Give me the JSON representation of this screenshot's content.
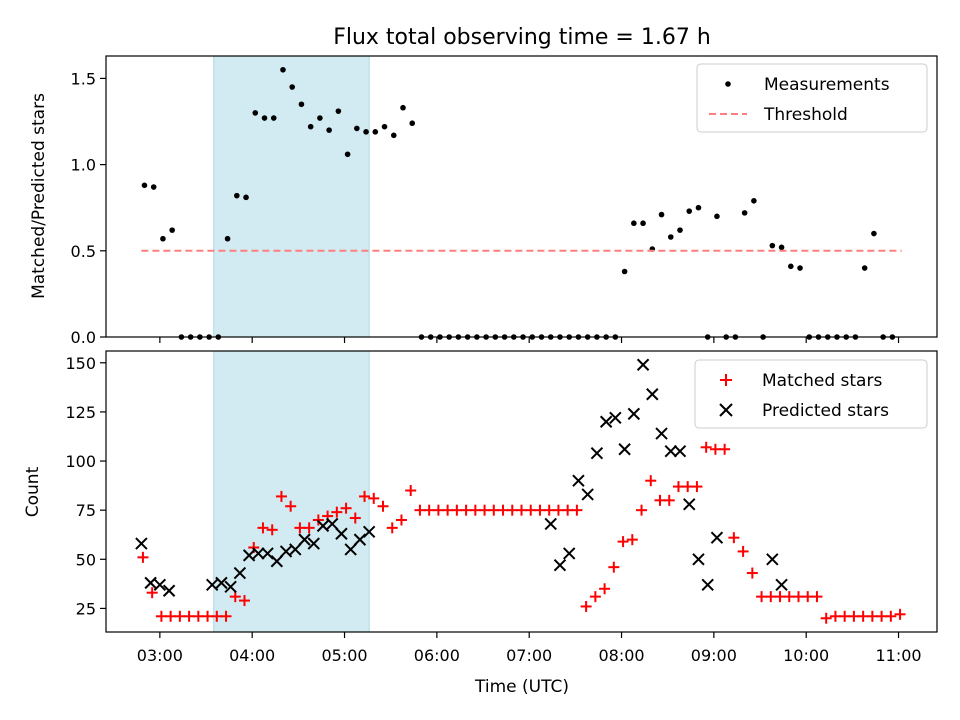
{
  "chart_data": [
    {
      "type": "scatter",
      "title": "Flux total observing time = 1.67 h",
      "xlabel": "",
      "ylabel": "Matched/Predicted stars",
      "xlim": [
        "02:25",
        "11:25"
      ],
      "ylim": [
        0,
        1.63
      ],
      "yticks": [
        0.0,
        0.5,
        1.0,
        1.5
      ],
      "ytick_labels": [
        "0.0",
        "0.5",
        "1.0",
        "1.5"
      ],
      "shaded_region": {
        "start": "03:35",
        "end": "05:16",
        "color": "#add8e6"
      },
      "legend_position": "upper right",
      "series": [
        {
          "name": "Measurements",
          "marker": "dot",
          "color": "#000000",
          "x": [
            "02:50",
            "02:56",
            "03:02",
            "03:08",
            "03:14",
            "03:20",
            "03:26",
            "03:32",
            "03:38",
            "03:44",
            "03:50",
            "03:56",
            "04:02",
            "04:08",
            "04:14",
            "04:20",
            "04:26",
            "04:32",
            "04:38",
            "04:44",
            "04:50",
            "04:56",
            "05:02",
            "05:08",
            "05:14",
            "05:20",
            "05:26",
            "05:32",
            "05:38",
            "05:44",
            "05:50",
            "05:56",
            "06:02",
            "06:08",
            "06:14",
            "06:20",
            "06:26",
            "06:32",
            "06:38",
            "06:44",
            "06:50",
            "06:56",
            "07:02",
            "07:08",
            "07:14",
            "07:20",
            "07:26",
            "07:32",
            "07:38",
            "07:44",
            "07:50",
            "07:56",
            "08:02",
            "08:08",
            "08:14",
            "08:20",
            "08:26",
            "08:32",
            "08:38",
            "08:44",
            "08:50",
            "08:56",
            "09:02",
            "09:08",
            "09:14",
            "09:20",
            "09:26",
            "09:32",
            "09:38",
            "09:44",
            "09:50",
            "09:56",
            "10:02",
            "10:08",
            "10:14",
            "10:20",
            "10:26",
            "10:32",
            "10:38",
            "10:44",
            "10:50",
            "10:56"
          ],
          "y": [
            0.88,
            0.87,
            0.57,
            0.62,
            0,
            0,
            0,
            0,
            0,
            0.57,
            0.82,
            0.81,
            1.3,
            1.27,
            1.27,
            1.55,
            1.45,
            1.35,
            1.22,
            1.27,
            1.2,
            1.31,
            1.06,
            1.21,
            1.19,
            1.19,
            1.22,
            1.17,
            1.33,
            1.24,
            0,
            0,
            0,
            0,
            0,
            0,
            0,
            0,
            0,
            0,
            0,
            0,
            0,
            0,
            0,
            0,
            0,
            0,
            0,
            0,
            0,
            0,
            0.38,
            0.66,
            0.66,
            0.51,
            0.71,
            0.58,
            0.62,
            0.73,
            0.75,
            0,
            0.7,
            0,
            0,
            0.72,
            0.79,
            0,
            0.53,
            0.52,
            0.41,
            0.4,
            0,
            0,
            0,
            0,
            0,
            0,
            0.4,
            0.6,
            0,
            0
          ]
        },
        {
          "name": "Threshold",
          "marker": "dashed-line",
          "color": "#ff7f7f",
          "x": [
            "02:48",
            "11:02"
          ],
          "y": [
            0.5,
            0.5
          ]
        }
      ]
    },
    {
      "type": "scatter",
      "title": "",
      "xlabel": "Time (UTC)",
      "ylabel": "Count",
      "xlim": [
        "02:25",
        "11:25"
      ],
      "ylim": [
        13,
        156
      ],
      "xticks": [
        "03:00",
        "04:00",
        "05:00",
        "06:00",
        "07:00",
        "08:00",
        "09:00",
        "10:00",
        "11:00"
      ],
      "yticks": [
        25,
        50,
        75,
        100,
        125,
        150
      ],
      "ytick_labels": [
        "25",
        "50",
        "75",
        "100",
        "125",
        "150"
      ],
      "shaded_region": {
        "start": "03:35",
        "end": "05:16",
        "color": "#add8e6"
      },
      "legend_position": "upper right",
      "series": [
        {
          "name": "Matched stars",
          "marker": "plus",
          "color": "#ff0000",
          "x": [
            "02:49",
            "02:55",
            "03:01",
            "03:07",
            "03:13",
            "03:19",
            "03:25",
            "03:31",
            "03:37",
            "03:43",
            "03:49",
            "03:55",
            "04:01",
            "04:07",
            "04:13",
            "04:19",
            "04:25",
            "04:31",
            "04:37",
            "04:43",
            "04:49",
            "04:55",
            "05:01",
            "05:07",
            "05:13",
            "05:19",
            "05:25",
            "05:31",
            "05:37",
            "05:43",
            "05:49",
            "05:55",
            "06:01",
            "06:07",
            "06:13",
            "06:19",
            "06:25",
            "06:31",
            "06:37",
            "06:43",
            "06:49",
            "06:55",
            "07:01",
            "07:07",
            "07:13",
            "07:19",
            "07:25",
            "07:31",
            "07:37",
            "07:43",
            "07:49",
            "07:55",
            "08:01",
            "08:07",
            "08:13",
            "08:19",
            "08:25",
            "08:31",
            "08:37",
            "08:43",
            "08:49",
            "08:55",
            "09:01",
            "09:07",
            "09:13",
            "09:19",
            "09:25",
            "09:31",
            "09:37",
            "09:43",
            "09:49",
            "09:55",
            "10:01",
            "10:07",
            "10:13",
            "10:19",
            "10:25",
            "10:31",
            "10:37",
            "10:43",
            "10:49",
            "10:55",
            "11:01"
          ],
          "y": [
            51,
            33,
            21,
            21,
            21,
            21,
            21,
            21,
            21,
            21,
            31,
            29,
            56,
            66,
            65,
            82,
            77,
            66,
            66,
            70,
            72,
            74,
            76,
            71,
            82,
            81,
            77,
            66,
            70,
            85,
            75,
            75,
            75,
            75,
            75,
            75,
            75,
            75,
            75,
            75,
            75,
            75,
            75,
            75,
            75,
            75,
            75,
            75,
            26,
            31,
            35,
            46,
            59,
            60,
            75,
            90,
            80,
            80,
            87,
            87,
            87,
            107,
            106,
            106,
            61,
            54,
            43,
            31,
            31,
            31,
            31,
            31,
            31,
            31,
            20,
            21,
            21,
            21,
            21,
            21,
            21,
            21,
            22
          ]
        },
        {
          "name": "Predicted stars",
          "marker": "x",
          "color": "#000000",
          "x": [
            "02:48",
            "02:54",
            "03:00",
            "03:06",
            "03:34",
            "03:40",
            "03:46",
            "03:52",
            "03:58",
            "04:04",
            "04:10",
            "04:16",
            "04:22",
            "04:28",
            "04:34",
            "04:40",
            "04:46",
            "04:52",
            "04:58",
            "05:04",
            "05:10",
            "05:16",
            "07:14",
            "07:20",
            "07:26",
            "07:32",
            "07:38",
            "07:44",
            "07:50",
            "07:56",
            "08:02",
            "08:08",
            "08:14",
            "08:20",
            "08:26",
            "08:32",
            "08:38",
            "08:44",
            "08:50",
            "08:56",
            "09:02",
            "09:38",
            "09:44"
          ],
          "y": [
            58,
            38,
            37,
            34,
            37,
            38,
            36,
            43,
            52,
            53,
            53,
            49,
            54,
            55,
            60,
            58,
            67,
            68,
            63,
            55,
            60,
            64,
            68,
            47,
            53,
            90,
            83,
            104,
            120,
            122,
            106,
            124,
            149,
            134,
            114,
            105,
            105,
            78,
            50,
            37,
            61,
            50,
            37
          ]
        }
      ]
    }
  ]
}
